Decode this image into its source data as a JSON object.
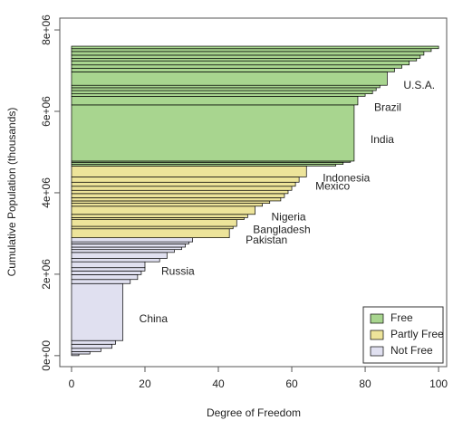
{
  "chart_data": {
    "type": "cumulative-bar",
    "xlabel": "Degree of Freedom",
    "ylabel": "Cumulative Population (thousands)",
    "xlim": [
      -3.2,
      102.2
    ],
    "ylim": [
      -270000,
      8290000
    ],
    "xticks": [
      0,
      20,
      40,
      60,
      80,
      100
    ],
    "yticks": [
      {
        "value": 0,
        "label": "0e+00"
      },
      {
        "value": 2000000,
        "label": "2e+06"
      },
      {
        "value": 4000000,
        "label": "4e+06"
      },
      {
        "value": 6000000,
        "label": "6e+06"
      },
      {
        "value": 8000000,
        "label": "8e+06"
      }
    ],
    "legend": "bottom-right",
    "series": [
      {
        "name": "Not Free",
        "color": "#e0e0f0",
        "categories": [
          null,
          null,
          null,
          null,
          null,
          "China",
          null,
          null,
          null,
          null,
          "Russia",
          null,
          null,
          null,
          null,
          null,
          null,
          null
        ],
        "values": [
          2,
          5,
          8,
          11,
          12,
          14,
          16,
          18,
          19,
          20,
          20,
          24,
          26,
          28,
          30,
          31,
          32,
          33
        ],
        "populations": [
          40000,
          60000,
          80000,
          100000,
          90000,
          1400000,
          100000,
          120000,
          90000,
          80000,
          145000,
          80000,
          150000,
          70000,
          60000,
          80000,
          50000,
          100000
        ]
      },
      {
        "name": "Partly Free",
        "color": "#ede49a",
        "categories": [
          "Pakistan",
          null,
          "Bangladesh",
          null,
          null,
          "Nigeria",
          null,
          null,
          null,
          null,
          null,
          null,
          null,
          "Mexico",
          "Indonesia"
        ],
        "values": [
          43,
          44,
          45,
          47,
          48,
          50,
          52,
          54,
          57,
          58,
          59,
          60,
          61,
          62,
          64
        ],
        "populations": [
          220000,
          60000,
          165000,
          50000,
          80000,
          200000,
          70000,
          60000,
          80000,
          100000,
          80000,
          100000,
          100000,
          128000,
          270000
        ]
      },
      {
        "name": "Free",
        "color": "#a8d58f",
        "categories": [
          null,
          null,
          null,
          "India",
          "Brazil",
          null,
          null,
          null,
          null,
          "U.S.A.",
          null,
          null,
          null,
          null,
          null,
          null,
          null,
          null
        ],
        "values": [
          72,
          74,
          76,
          77,
          78,
          80,
          82,
          83,
          84,
          86,
          88,
          90,
          92,
          94,
          95,
          96,
          98,
          100
        ],
        "populations": [
          40000,
          50000,
          30000,
          1380000,
          212000,
          60000,
          80000,
          70000,
          60000,
          330000,
          90000,
          80000,
          100000,
          60000,
          80000,
          90000,
          70000,
          60000
        ]
      }
    ]
  }
}
